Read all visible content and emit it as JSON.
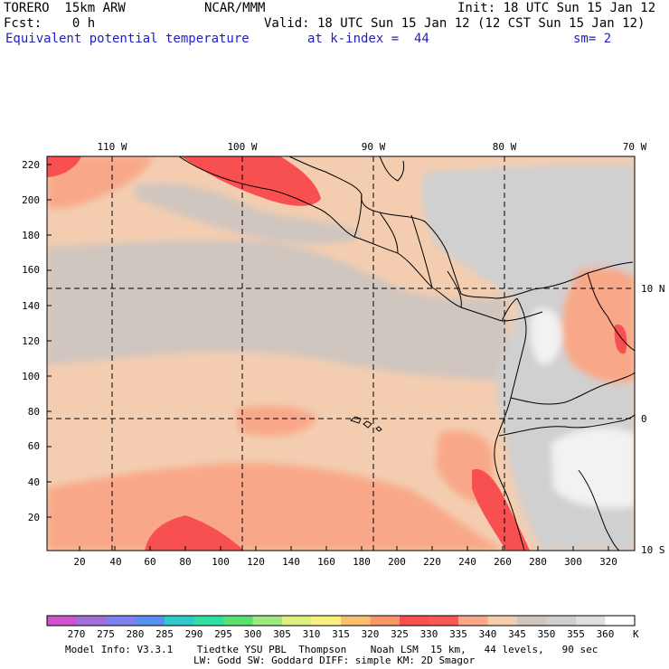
{
  "header": {
    "model": "TORERO  15km ARW",
    "center": "NCAR/MMM",
    "init": "Init: 18 UTC Sun 15 Jan 12",
    "fcst": "Fcst:    0 h",
    "valid": "Valid: 18 UTC Sun 15 Jan 12 (12 CST Sun 15 Jan 12)",
    "field": "Equivalent potential temperature",
    "level": "at k-index =  44",
    "smooth": "sm= 2"
  },
  "map": {
    "lon_labels": [
      "110 W",
      "100 W",
      "90 W",
      "80 W",
      "70 W"
    ],
    "lat_labels": [
      "10 N",
      "0",
      "10 S"
    ],
    "y_ticks": [
      "220",
      "200",
      "180",
      "160",
      "140",
      "120",
      "100",
      "80",
      "60",
      "40",
      "20"
    ],
    "x_ticks": [
      "20",
      "40",
      "60",
      "80",
      "100",
      "120",
      "140",
      "160",
      "180",
      "200",
      "220",
      "240",
      "260",
      "280",
      "300",
      "320"
    ]
  },
  "colorbar": {
    "labels": [
      "270",
      "275",
      "280",
      "285",
      "290",
      "295",
      "300",
      "305",
      "310",
      "315",
      "320",
      "325",
      "330",
      "335",
      "340",
      "345",
      "350",
      "355",
      "360"
    ],
    "unit": "K",
    "colors": [
      "#cc55cc",
      "#a070d8",
      "#8080ee",
      "#5a8ef0",
      "#30c8c8",
      "#30e0a0",
      "#5ae070",
      "#a0e880",
      "#e0f080",
      "#f8f080",
      "#f8c070",
      "#f89868",
      "#f85050",
      "#f85858",
      "#f8a888",
      "#f4cdb0",
      "#cfc6bf",
      "#d0d0d0",
      "#e0e0e0",
      "#ffffff"
    ]
  },
  "footer": {
    "line1": "Model Info: V3.3.1    Tiedtke YSU PBL  Thompson    Noah LSM  15 km,   44 levels,   90 sec",
    "line2": "LW: Godd SW: Goddard DIFF: simple KM: 2D Smagor"
  }
}
